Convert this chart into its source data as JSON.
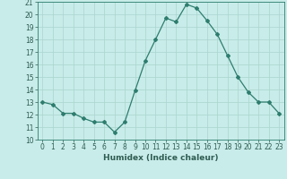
{
  "x": [
    0,
    1,
    2,
    3,
    4,
    5,
    6,
    7,
    8,
    9,
    10,
    11,
    12,
    13,
    14,
    15,
    16,
    17,
    18,
    19,
    20,
    21,
    22,
    23
  ],
  "y": [
    13.0,
    12.8,
    12.1,
    12.1,
    11.7,
    11.4,
    11.4,
    10.6,
    11.4,
    13.9,
    16.3,
    18.0,
    19.7,
    19.4,
    20.8,
    20.5,
    19.5,
    18.4,
    16.7,
    15.0,
    13.8,
    13.0,
    13.0,
    12.1
  ],
  "line_color": "#2e7d6e",
  "marker": "D",
  "marker_size": 2.0,
  "bg_color": "#c8ece9",
  "grid_color": "#aad4cf",
  "xlabel": "Humidex (Indice chaleur)",
  "xlim": [
    -0.5,
    23.5
  ],
  "ylim": [
    10,
    21
  ],
  "yticks": [
    10,
    11,
    12,
    13,
    14,
    15,
    16,
    17,
    18,
    19,
    20,
    21
  ],
  "xticks": [
    0,
    1,
    2,
    3,
    4,
    5,
    6,
    7,
    8,
    9,
    10,
    11,
    12,
    13,
    14,
    15,
    16,
    17,
    18,
    19,
    20,
    21,
    22,
    23
  ],
  "tick_fontsize": 5.5,
  "xlabel_fontsize": 6.5,
  "tick_color": "#2e5c52",
  "spine_color": "#2e7d6e"
}
